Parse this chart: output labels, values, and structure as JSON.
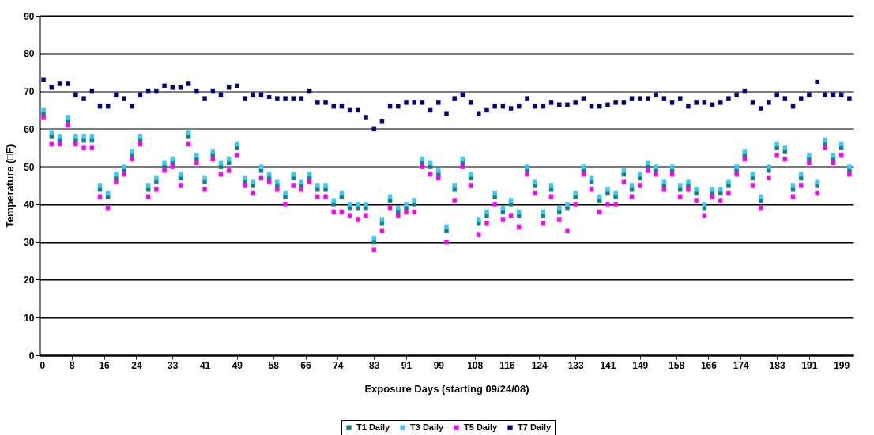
{
  "chart_data": {
    "type": "scatter",
    "xlabel": "Exposure Days (starting 09/24/08)",
    "ylabel": "Temperature (□F)",
    "xlim": [
      0,
      202
    ],
    "xticks": [
      0,
      8,
      16,
      24,
      33,
      41,
      49,
      58,
      66,
      74,
      83,
      91,
      99,
      108,
      116,
      124,
      133,
      141,
      149,
      158,
      166,
      174,
      183,
      191,
      199
    ],
    "ylim": [
      0,
      90
    ],
    "yticks": [
      0,
      10,
      20,
      30,
      40,
      50,
      60,
      70,
      80,
      90
    ],
    "grid": "y",
    "legend": "bottom",
    "marker": "square",
    "x": [
      1,
      3,
      5,
      7,
      9,
      11,
      13,
      15,
      17,
      19,
      21,
      23,
      25,
      27,
      29,
      31,
      33,
      35,
      37,
      39,
      41,
      43,
      45,
      47,
      49,
      51,
      53,
      55,
      57,
      59,
      61,
      63,
      65,
      67,
      69,
      71,
      73,
      75,
      77,
      79,
      81,
      83,
      85,
      87,
      89,
      91,
      93,
      95,
      97,
      99,
      101,
      103,
      105,
      107,
      109,
      111,
      113,
      115,
      117,
      119,
      121,
      123,
      125,
      127,
      129,
      131,
      133,
      135,
      137,
      139,
      141,
      143,
      145,
      147,
      149,
      151,
      153,
      155,
      157,
      159,
      161,
      163,
      165,
      167,
      169,
      171,
      173,
      175,
      177,
      179,
      181,
      183,
      185,
      187,
      189,
      191,
      193,
      195,
      197,
      199,
      201
    ],
    "series": [
      {
        "name": "T1 Daily",
        "color": "#1a8080",
        "values": [
          64,
          58,
          57,
          62,
          57,
          57,
          57,
          44,
          42,
          47,
          49,
          53,
          57,
          44,
          46,
          50,
          51,
          47,
          58,
          52,
          46,
          53,
          50,
          51,
          55,
          46,
          45,
          49,
          47,
          45,
          42,
          47,
          45,
          47,
          44,
          44,
          40,
          42,
          39,
          39,
          39,
          30,
          35,
          41,
          38,
          39,
          40,
          51,
          50,
          48,
          33,
          44,
          51,
          47,
          35,
          37,
          42,
          38,
          40,
          37,
          49,
          45,
          37,
          44,
          38,
          39,
          42,
          49,
          46,
          41,
          43,
          42,
          48,
          44,
          47,
          50,
          49,
          45,
          49,
          44,
          45,
          43,
          39,
          43,
          43,
          45,
          49,
          53,
          47,
          41,
          49,
          55,
          54,
          44,
          47,
          52,
          45,
          56,
          52,
          55,
          49
        ]
      },
      {
        "name": "T3 Daily",
        "color": "#33ccff",
        "values": [
          65,
          59,
          58,
          63,
          58,
          58,
          58,
          45,
          43,
          48,
          50,
          54,
          58,
          45,
          47,
          51,
          52,
          48,
          59,
          53,
          47,
          54,
          51,
          52,
          56,
          47,
          46,
          50,
          48,
          46,
          43,
          48,
          46,
          48,
          45,
          45,
          41,
          43,
          40,
          40,
          40,
          31,
          36,
          42,
          39,
          40,
          41,
          52,
          51,
          49,
          34,
          45,
          52,
          48,
          36,
          38,
          43,
          39,
          41,
          38,
          50,
          46,
          38,
          45,
          39,
          40,
          43,
          50,
          47,
          42,
          44,
          43,
          49,
          45,
          48,
          51,
          50,
          46,
          50,
          45,
          46,
          44,
          40,
          44,
          44,
          46,
          50,
          54,
          48,
          42,
          50,
          56,
          55,
          45,
          48,
          53,
          46,
          57,
          53,
          56,
          50
        ]
      },
      {
        "name": "T5 Daily",
        "color": "#ff00ff",
        "values": [
          63,
          56,
          56,
          61,
          56,
          55,
          55,
          42,
          39,
          46,
          48,
          52,
          56,
          42,
          44,
          49,
          50,
          45,
          56,
          51,
          44,
          52,
          48,
          49,
          53,
          45,
          43,
          47,
          46,
          44,
          40,
          45,
          44,
          46,
          42,
          42,
          38,
          38,
          37,
          36,
          37,
          28,
          33,
          39,
          37,
          38,
          38,
          50,
          48,
          47,
          30,
          41,
          50,
          45,
          32,
          35,
          40,
          36,
          37,
          34,
          48,
          43,
          35,
          42,
          36,
          33,
          40,
          48,
          44,
          38,
          40,
          40,
          46,
          42,
          45,
          49,
          48,
          44,
          48,
          42,
          44,
          41,
          37,
          42,
          41,
          43,
          48,
          52,
          45,
          39,
          47,
          53,
          52,
          42,
          45,
          51,
          43,
          55,
          51,
          53,
          48
        ]
      },
      {
        "name": "T7 Daily",
        "color": "#000080",
        "values": [
          73,
          71,
          72,
          72,
          69,
          68,
          70,
          66,
          66,
          69,
          68,
          66,
          69,
          70,
          70,
          71.5,
          71,
          71,
          72,
          70,
          68,
          70,
          69,
          71,
          71.5,
          68,
          69,
          69,
          68.5,
          68,
          68,
          68,
          68,
          70,
          67,
          67,
          66,
          66,
          65,
          65,
          63,
          60,
          62,
          66,
          66,
          67,
          67,
          67,
          65,
          67,
          64,
          68,
          69,
          67,
          64,
          65,
          66,
          66,
          65.5,
          66,
          68,
          66,
          66,
          67,
          66.5,
          66.5,
          67,
          68,
          66,
          66,
          66.5,
          67,
          67,
          68,
          68,
          68,
          69,
          68,
          67,
          68,
          66,
          67,
          67,
          66.5,
          67,
          68,
          69,
          70,
          67,
          65.5,
          67,
          69,
          68,
          66,
          68,
          69,
          72.5,
          69,
          69,
          69,
          68
        ]
      }
    ]
  }
}
